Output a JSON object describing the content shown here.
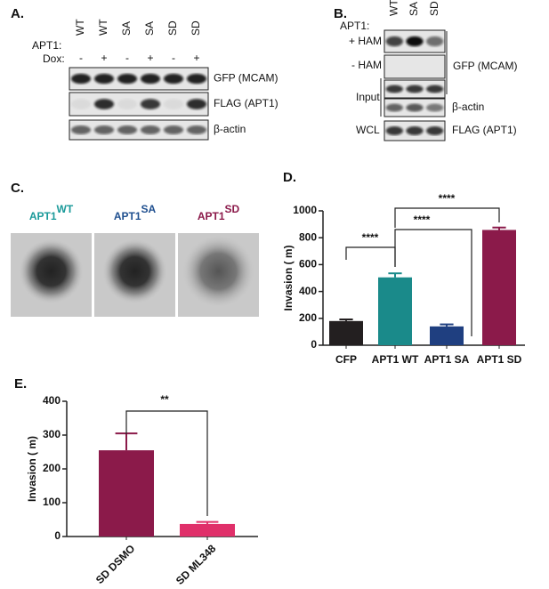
{
  "panel_labels": [
    "A.",
    "B.",
    "C.",
    "D.",
    "E."
  ],
  "blot_a": {
    "row_labels": [
      "APT1:",
      "Dox:"
    ],
    "lanes": [
      "WT",
      "WT",
      "SA",
      "SA",
      "SD",
      "SD"
    ],
    "dox": [
      "-",
      "+",
      "-",
      "+",
      "-",
      "+"
    ],
    "blots": [
      "GFP (MCAM)",
      "FLAG (APT1)",
      "β-actin"
    ]
  },
  "blot_b": {
    "row_label": "APT1:",
    "lanes": [
      "WT",
      "SA",
      "SD"
    ],
    "rows": [
      "+ HAM",
      "- HAM",
      "Input",
      "WCL"
    ],
    "blots": [
      "GFP (MCAM)",
      "β-actin",
      "FLAG (APT1)"
    ]
  },
  "images": [
    {
      "title": "APT1",
      "sup": "WT",
      "color": "#1a9a9a"
    },
    {
      "title": "APT1",
      "sup": "SA",
      "color": "#1f4f8f"
    },
    {
      "title": "APT1",
      "sup": "SD",
      "color": "#8b1a4a"
    }
  ],
  "chart_data": [
    {
      "type": "bar",
      "y_label": "Invasion ( m)",
      "categories": [
        "CFP",
        "APT1 WT",
        "APT1 SA",
        "APT1 SD"
      ],
      "values": [
        180,
        505,
        140,
        858
      ],
      "errors": [
        12,
        30,
        15,
        18
      ],
      "colors": [
        "#231f20",
        "#1a8a8a",
        "#1f3f80",
        "#8b1a4a"
      ],
      "ylim": [
        0,
        1000
      ],
      "yticks": [
        0,
        200,
        400,
        600,
        800,
        1000
      ],
      "annotations": [
        "****",
        "****",
        "****"
      ]
    },
    {
      "type": "bar",
      "y_label": "Invasion ( m)",
      "categories": [
        "SD DSMO",
        "SD ML348"
      ],
      "values": [
        255,
        37
      ],
      "errors": [
        50,
        6
      ],
      "colors": [
        "#8b1a4a",
        "#e0306a"
      ],
      "ylim": [
        0,
        400
      ],
      "yticks": [
        0,
        100,
        200,
        300,
        400
      ],
      "annotations": [
        "**"
      ]
    }
  ]
}
